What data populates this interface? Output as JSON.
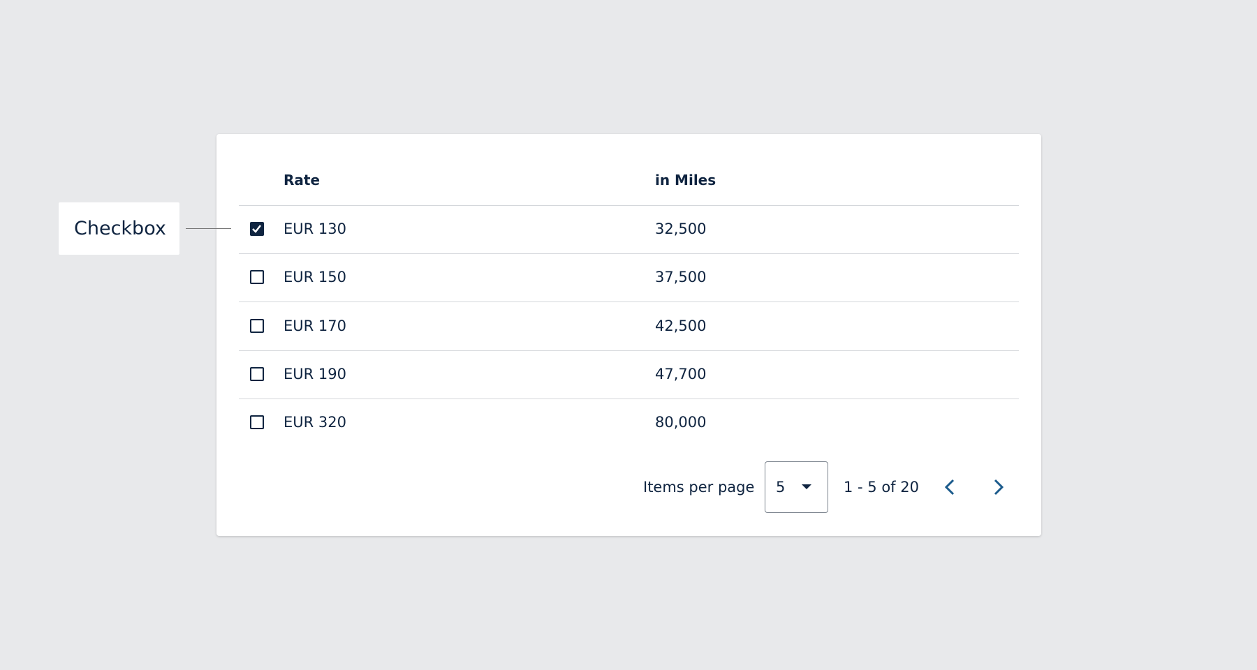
{
  "callout": {
    "label": "Checkbox"
  },
  "table": {
    "headers": [
      "Rate",
      "in Miles"
    ],
    "rows": [
      {
        "checked": true,
        "rate": "EUR 130",
        "miles": "32,500"
      },
      {
        "checked": false,
        "rate": "EUR 150",
        "miles": "37,500"
      },
      {
        "checked": false,
        "rate": "EUR 170",
        "miles": "42,500"
      },
      {
        "checked": false,
        "rate": "EUR 190",
        "miles": "47,700"
      },
      {
        "checked": false,
        "rate": "EUR 320",
        "miles": "80,000"
      }
    ]
  },
  "pagination": {
    "items_label": "Items per page",
    "page_size": "5",
    "range": "1 - 5 of 20"
  }
}
